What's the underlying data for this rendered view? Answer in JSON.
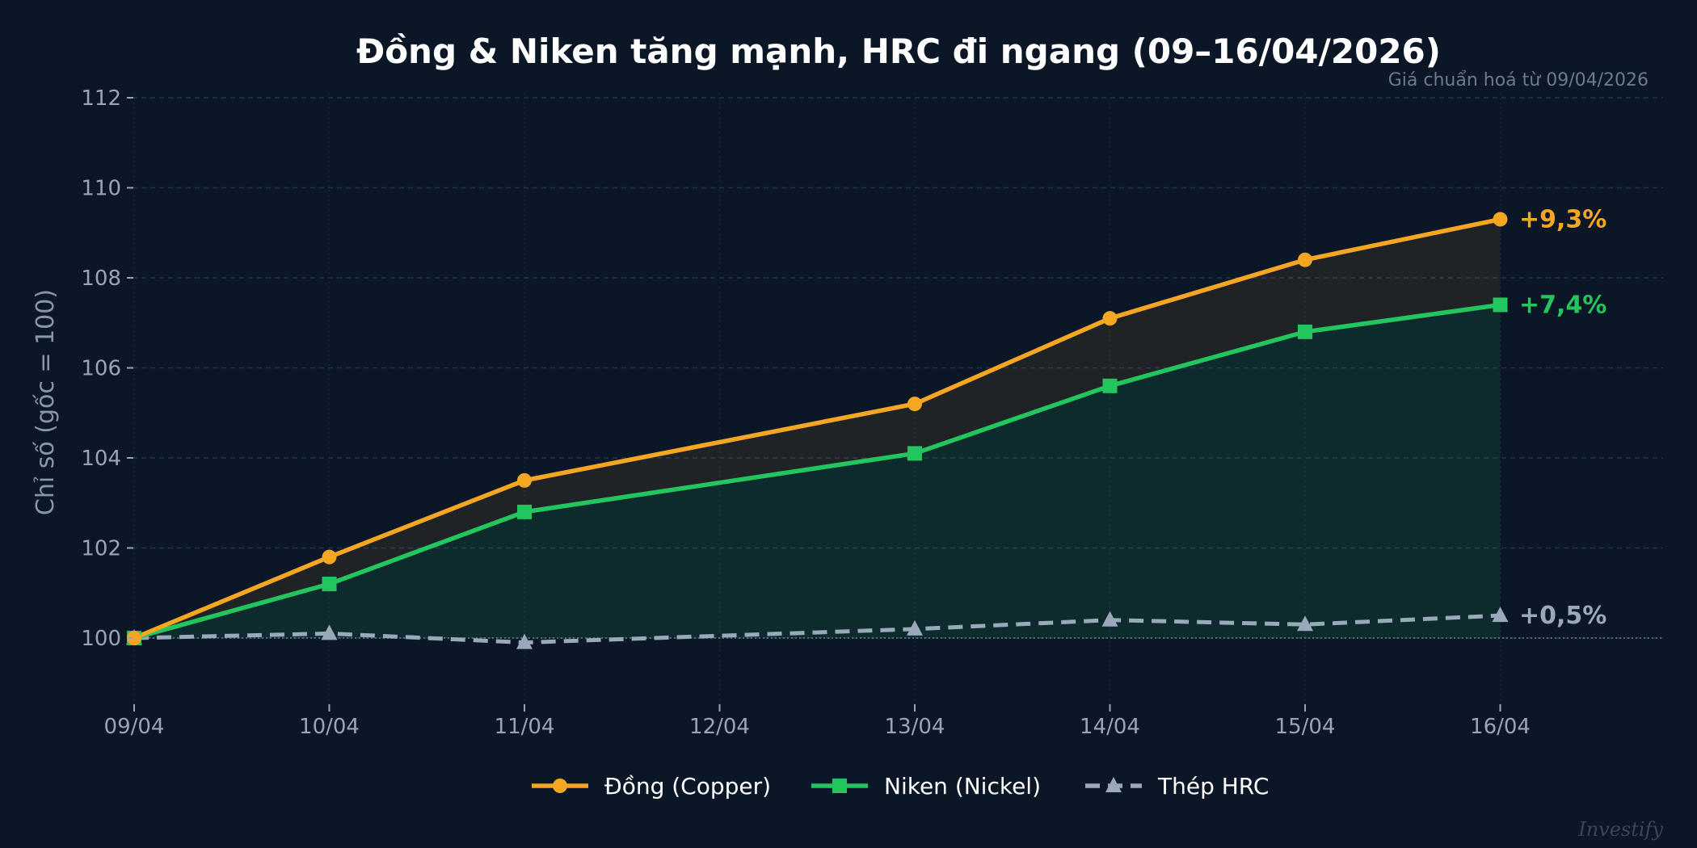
{
  "chart_data": {
    "type": "line",
    "title": "Đồng & Niken tăng mạnh, HRC đi ngang (09–16/04/2026)",
    "subtitle": "Giá chuẩn hoá từ 09/04/2026",
    "xlabel": "",
    "ylabel": "Chỉ số (gốc = 100)",
    "ylim": [
      98.5,
      112
    ],
    "yticks": [
      100,
      102,
      104,
      106,
      108,
      110,
      112
    ],
    "xticks": [
      "09/04",
      "10/04",
      "11/04",
      "12/04",
      "13/04",
      "14/04",
      "15/04",
      "16/04"
    ],
    "grid": true,
    "legend_position": "bottom-center",
    "baseline": 100,
    "series": [
      {
        "name": "Đồng (Copper)",
        "color": "#f5a623",
        "marker": "circle",
        "line_style": "solid",
        "x": [
          "09/04",
          "10/04",
          "11/04",
          "13/04",
          "14/04",
          "15/04",
          "16/04"
        ],
        "values": [
          100,
          101.8,
          103.5,
          105.2,
          107.1,
          108.4,
          109.3
        ],
        "end_label": "+9,3%"
      },
      {
        "name": "Niken (Nickel)",
        "color": "#22c55e",
        "marker": "square",
        "line_style": "solid",
        "x": [
          "09/04",
          "10/04",
          "11/04",
          "13/04",
          "14/04",
          "15/04",
          "16/04"
        ],
        "values": [
          100,
          101.2,
          102.8,
          104.1,
          105.6,
          106.8,
          107.4
        ],
        "end_label": "+7,4%"
      },
      {
        "name": "Thép HRC",
        "color": "#9aa8bb",
        "marker": "triangle",
        "line_style": "dashed",
        "x": [
          "09/04",
          "10/04",
          "11/04",
          "13/04",
          "14/04",
          "15/04",
          "16/04"
        ],
        "values": [
          100,
          100.1,
          99.9,
          100.2,
          100.4,
          100.3,
          100.5
        ],
        "end_label": "+0,5%"
      }
    ]
  },
  "watermark": "Investify",
  "colors": {
    "background": "#0b1627",
    "grid": "#1f3350",
    "tick": "#9aa5b4"
  }
}
